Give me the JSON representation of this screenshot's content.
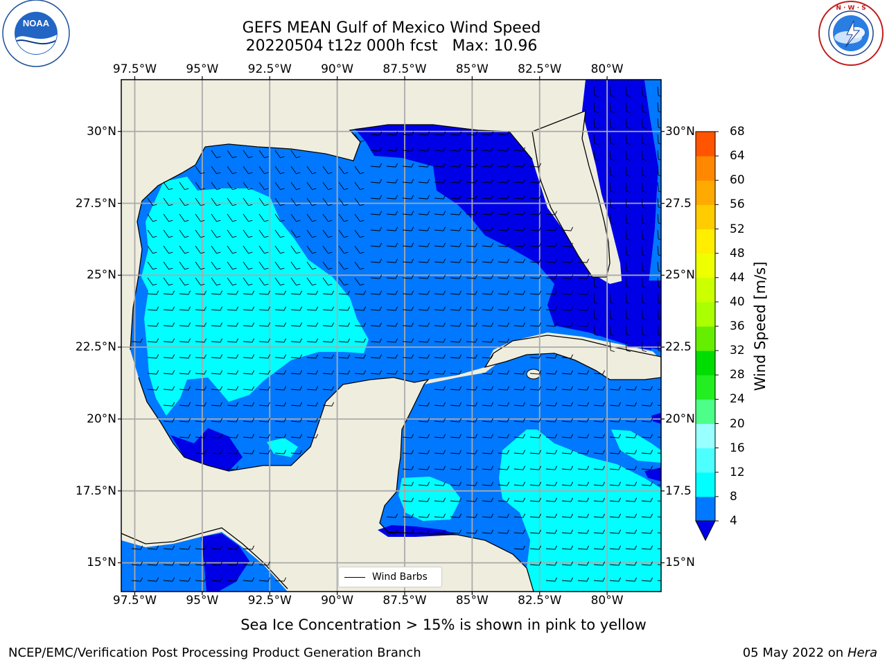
{
  "header": {
    "title_line1": "GEFS MEAN Gulf of Mexico Wind Speed",
    "title_line2": "20220504 t12z 000h fcst   Max: 10.96"
  },
  "logos": {
    "left_logo_text": "NOAA",
    "left_logo_ring": "NATIONAL OCEANIC AND ATMOSPHERIC ADMINISTRATION · U.S. DEPARTMENT OF COMMERCE",
    "right_logo_ring": "NATIONAL WEATHER SERVICE"
  },
  "map": {
    "lon_ticks": [
      "97.5°W",
      "95°W",
      "92.5°W",
      "90°W",
      "87.5°W",
      "85°W",
      "82.5°W",
      "80°W"
    ],
    "lon_values": [
      -97.5,
      -95,
      -92.5,
      -90,
      -87.5,
      -85,
      -82.5,
      -80
    ],
    "lat_ticks_left": [
      "30°N",
      "27.5°N",
      "25°N",
      "22.5°N",
      "20°N",
      "17.5°N",
      "15°N"
    ],
    "lat_ticks_right": [
      "30°N",
      "27.5",
      "25°N",
      "22.5",
      "20°N",
      "17.5",
      "15°N"
    ],
    "lat_values": [
      30,
      27.5,
      25,
      22.5,
      20,
      17.5,
      15
    ],
    "extent": {
      "lon_min": -98,
      "lon_max": -78,
      "lat_min": 14,
      "lat_max": 31.8
    },
    "legend_label": "Wind Barbs",
    "colors": {
      "land": "#efedde",
      "band_4_8": "#0078ff",
      "band_below_4": "#0000e6",
      "band_8_12": "#00ffff"
    }
  },
  "colorbar": {
    "label": "Wind Speed [m/s]",
    "ticks": [
      "4",
      "8",
      "12",
      "16",
      "20",
      "24",
      "28",
      "32",
      "36",
      "40",
      "44",
      "48",
      "52",
      "56",
      "60",
      "64",
      "68"
    ],
    "colors": [
      "#0078ff",
      "#00ffff",
      "#4dffff",
      "#99ffff",
      "#4dff88",
      "#22ee22",
      "#00dd00",
      "#66ee00",
      "#aaff00",
      "#ccff00",
      "#eeff00",
      "#ffee00",
      "#ffcc00",
      "#ffaa00",
      "#ff8800",
      "#ff5500",
      "#ff2a00",
      "#ff0000"
    ],
    "extend_color": "#0000e6"
  },
  "footer": {
    "note": "Sea Ice Concentration > 15% is shown in pink to yellow",
    "credit": "NCEP/EMC/Verification Post Processing Product Generation Branch",
    "date": "05 May 2022 on",
    "machine": "Hera"
  }
}
